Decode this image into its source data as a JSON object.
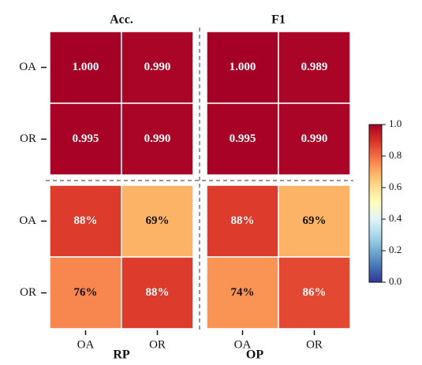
{
  "chart_data": {
    "type": "heatmap",
    "top_titles": [
      "Acc.",
      "F1"
    ],
    "bottom_titles": [
      "RP",
      "OP"
    ],
    "rows": [
      "OA",
      "OR",
      "OA",
      "OR"
    ],
    "columns": [
      "OA",
      "OR",
      "OA",
      "OR"
    ],
    "values": [
      [
        1,
        0.99,
        1,
        0.989
      ],
      [
        0.995,
        0.99,
        0.995,
        0.99
      ],
      [
        0.88,
        0.69,
        0.88,
        0.69
      ],
      [
        0.76,
        0.88,
        0.74,
        0.86
      ]
    ],
    "value_labels": [
      [
        "1.000",
        "0.990",
        "1.000",
        "0.989"
      ],
      [
        "0.995",
        "0.990",
        "0.995",
        "0.990"
      ],
      [
        "88%",
        "69%",
        "88%",
        "69%"
      ],
      [
        "76%",
        "88%",
        "74%",
        "86%"
      ]
    ],
    "clim": [
      0,
      1
    ],
    "cticks": [
      {
        "value": 0,
        "label": "0.0"
      },
      0.2,
      0.4,
      0.6,
      0.8,
      {
        "value": 1,
        "label": "1.0"
      }
    ],
    "colormap": [
      "#313695",
      "#4575b4",
      "#74add1",
      "#abd9e9",
      "#e0f3f8",
      "#ffffbf",
      "#fee090",
      "#fdae61",
      "#f46d43",
      "#d73027",
      "#a50026"
    ]
  }
}
